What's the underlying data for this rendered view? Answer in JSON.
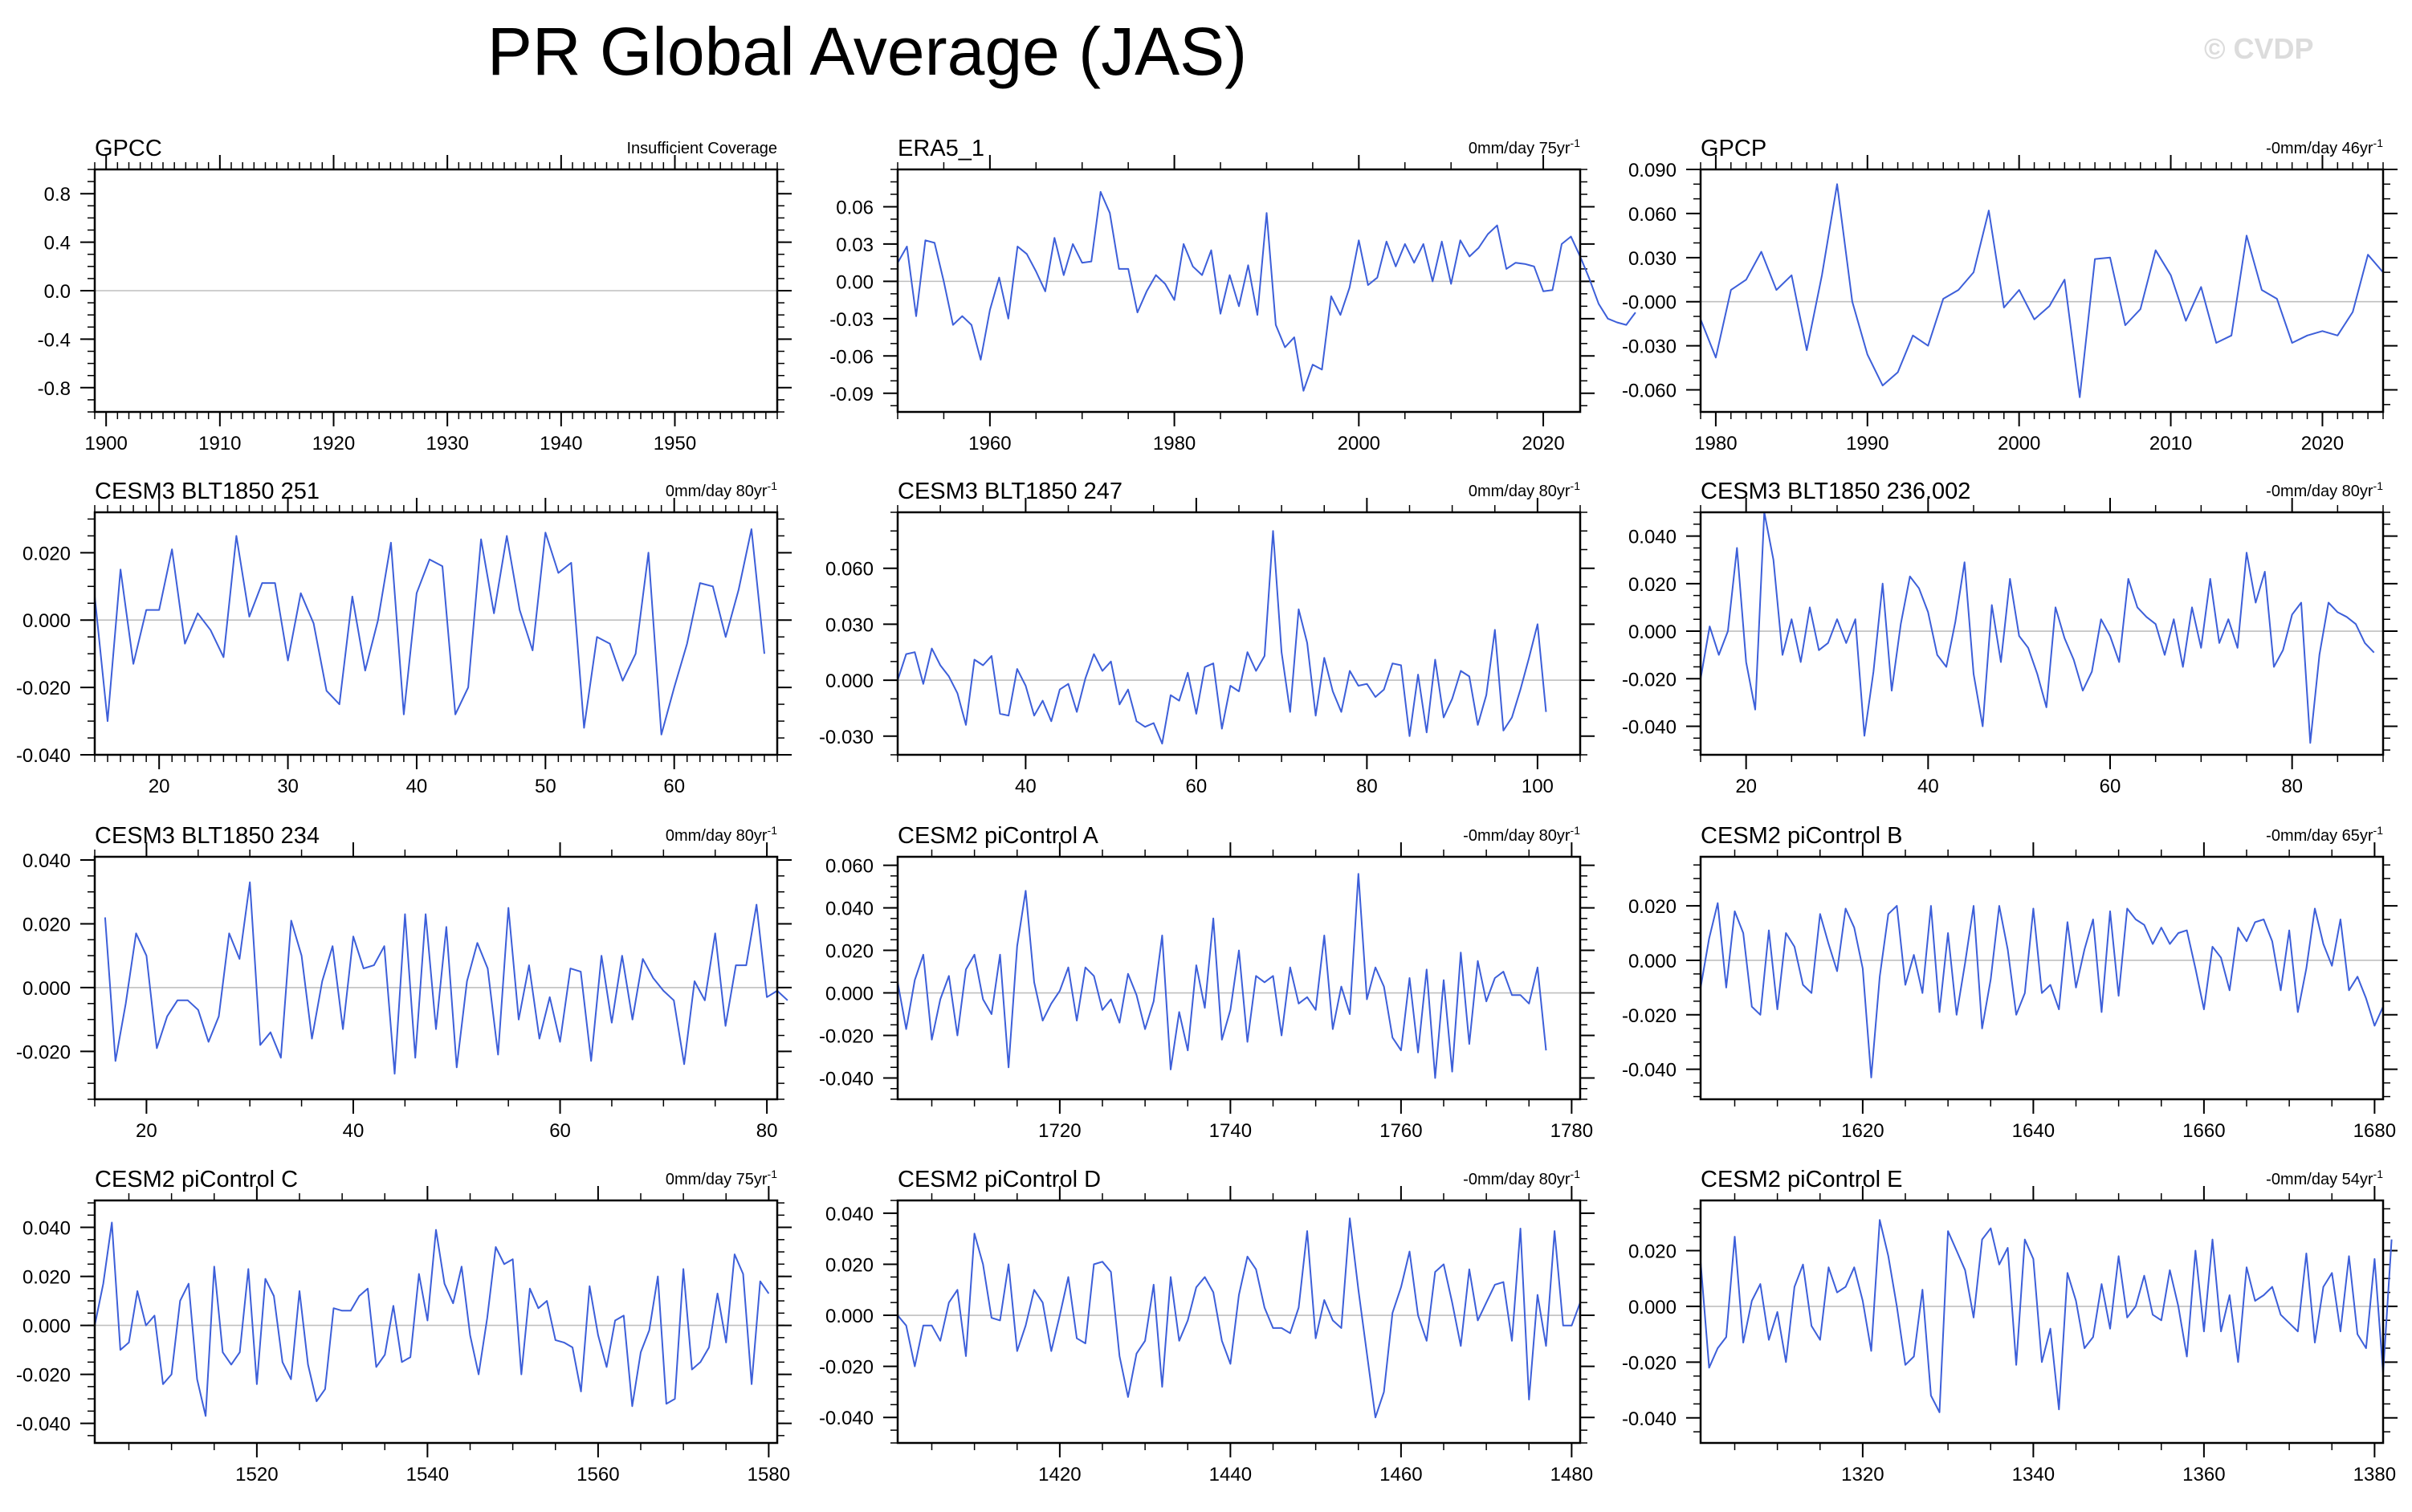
{
  "title": "PR Global Average (JAS)",
  "watermark": "© CVDP",
  "colors": {
    "line": "#3d5fd9",
    "zero": "#bfbfbf",
    "frame": "#000000"
  },
  "chart_data": [
    {
      "type": "line",
      "title": "GPCC",
      "right_label": "Insufficient Coverage",
      "xlim": [
        1899,
        1959
      ],
      "xticks": [
        1900,
        1910,
        1920,
        1930,
        1940,
        1950
      ],
      "xminor": 1,
      "ylim": [
        -1.0,
        1.0
      ],
      "yticks": [
        -0.8,
        -0.4,
        0.0,
        0.4,
        0.8
      ],
      "ytick_labels": [
        "-0.8",
        "-0.4",
        "0.0",
        "0.4",
        "0.8"
      ],
      "yminor": 0.1,
      "x0": 1900,
      "values": []
    },
    {
      "type": "line",
      "title": "ERA5_1",
      "right_label": "0mm/day 75yr",
      "xlim": [
        1950,
        2024
      ],
      "xticks": [
        1960,
        1980,
        2000,
        2020
      ],
      "xminor": 5,
      "ylim": [
        -0.105,
        0.09
      ],
      "yticks": [
        -0.09,
        -0.06,
        -0.03,
        0.0,
        0.03,
        0.06
      ],
      "ytick_labels": [
        "-0.09",
        "-0.06",
        "-0.03",
        "0.00",
        "0.03",
        "0.06"
      ],
      "yminor": 0.01,
      "x0": 1950,
      "values": [
        0.015,
        0.028,
        -0.028,
        0.033,
        0.031,
        0.0,
        -0.035,
        -0.028,
        -0.035,
        -0.063,
        -0.023,
        0.003,
        -0.03,
        0.028,
        0.022,
        0.008,
        -0.008,
        0.035,
        0.005,
        0.03,
        0.015,
        0.016,
        0.072,
        0.055,
        0.01,
        0.01,
        -0.025,
        -0.008,
        0.005,
        -0.002,
        -0.015,
        0.03,
        0.012,
        0.005,
        0.025,
        -0.026,
        0.005,
        -0.02,
        0.013,
        -0.027,
        0.055,
        -0.035,
        -0.053,
        -0.045,
        -0.088,
        -0.067,
        -0.071,
        -0.012,
        -0.027,
        -0.005,
        0.033,
        -0.003,
        0.003,
        0.032,
        0.012,
        0.03,
        0.015,
        0.03,
        0.0,
        0.032,
        -0.002,
        0.033,
        0.02,
        0.027,
        0.038,
        0.045,
        0.01,
        0.015,
        0.014,
        0.012,
        -0.008,
        -0.007,
        0.03,
        0.036,
        0.02,
        0.002,
        -0.018,
        -0.03,
        -0.033,
        -0.035,
        -0.025
      ]
    },
    {
      "type": "line",
      "title": "GPCP",
      "right_label": "-0mm/day 46yr",
      "xlim": [
        1979,
        2024
      ],
      "xticks": [
        1980,
        1990,
        2000,
        2010,
        2020
      ],
      "xminor": 1,
      "ylim": [
        -0.075,
        0.09
      ],
      "yticks": [
        -0.06,
        -0.03,
        0.0,
        0.03,
        0.06,
        0.09
      ],
      "ytick_labels": [
        "-0.060",
        "-0.030",
        "-0.000",
        "0.030",
        "0.060",
        "0.090"
      ],
      "yminor": 0.01,
      "x0": 1979,
      "values": [
        -0.012,
        -0.038,
        0.008,
        0.015,
        0.034,
        0.008,
        0.018,
        -0.033,
        0.018,
        0.08,
        0.0,
        -0.036,
        -0.057,
        -0.048,
        -0.023,
        -0.03,
        0.002,
        0.008,
        0.02,
        0.062,
        -0.004,
        0.008,
        -0.012,
        -0.003,
        0.015,
        -0.065,
        0.029,
        0.03,
        -0.016,
        -0.005,
        0.035,
        0.018,
        -0.013,
        0.01,
        -0.028,
        -0.023,
        0.045,
        0.008,
        0.002,
        -0.028,
        -0.023,
        -0.02,
        -0.023,
        -0.007,
        0.032,
        0.02
      ]
    },
    {
      "type": "line",
      "title": "CESM3 BLT1850 251",
      "right_label": "0mm/day 80yr",
      "xlim": [
        15,
        68
      ],
      "xticks": [
        20,
        30,
        40,
        50,
        60
      ],
      "xminor": 1,
      "ylim": [
        -0.04,
        0.032
      ],
      "yticks": [
        -0.04,
        -0.02,
        0.0,
        0.02
      ],
      "ytick_labels": [
        "-0.040",
        "-0.020",
        "0.000",
        "0.020"
      ],
      "yminor": 0.005,
      "x0": 15,
      "values": [
        0.007,
        -0.03,
        0.015,
        -0.013,
        0.003,
        0.003,
        0.021,
        -0.007,
        0.002,
        -0.003,
        -0.011,
        0.025,
        0.001,
        0.011,
        0.011,
        -0.012,
        0.008,
        -0.001,
        -0.021,
        -0.025,
        0.007,
        -0.015,
        0.0,
        0.023,
        -0.028,
        0.008,
        0.018,
        0.016,
        -0.028,
        -0.02,
        0.024,
        0.002,
        0.025,
        0.003,
        -0.009,
        0.026,
        0.014,
        0.017,
        -0.032,
        -0.005,
        -0.007,
        -0.018,
        -0.01,
        0.02,
        -0.034,
        -0.02,
        -0.007,
        0.011,
        0.01,
        -0.005,
        0.009,
        0.027,
        -0.01
      ]
    },
    {
      "type": "line",
      "title": "CESM3 BLT1850 247",
      "right_label": "0mm/day 80yr",
      "xlim": [
        25,
        105
      ],
      "xticks": [
        40,
        60,
        80,
        100
      ],
      "xminor": 5,
      "ylim": [
        -0.04,
        0.09
      ],
      "yticks": [
        -0.03,
        0.0,
        0.03,
        0.06
      ],
      "ytick_labels": [
        "-0.030",
        "0.000",
        "0.030",
        "0.060"
      ],
      "yminor": 0.01,
      "x0": 25,
      "values": [
        0.0,
        0.014,
        0.015,
        -0.002,
        0.017,
        0.008,
        0.002,
        -0.007,
        -0.024,
        0.011,
        0.008,
        0.013,
        -0.018,
        -0.019,
        0.006,
        -0.003,
        -0.019,
        -0.011,
        -0.022,
        -0.005,
        -0.002,
        -0.017,
        0.001,
        0.014,
        0.005,
        0.01,
        -0.013,
        -0.005,
        -0.022,
        -0.025,
        -0.023,
        -0.034,
        -0.008,
        -0.011,
        0.004,
        -0.018,
        0.007,
        0.009,
        -0.026,
        -0.003,
        -0.006,
        0.015,
        0.005,
        0.013,
        0.08,
        0.015,
        -0.017,
        0.038,
        0.02,
        -0.019,
        0.012,
        -0.006,
        -0.017,
        0.005,
        -0.003,
        -0.002,
        -0.009,
        -0.005,
        0.009,
        0.008,
        -0.03,
        0.003,
        -0.028,
        0.011,
        -0.02,
        -0.01,
        0.005,
        0.002,
        -0.024,
        -0.008,
        0.027,
        -0.027,
        -0.02,
        -0.005,
        0.012,
        0.03,
        -0.017
      ]
    },
    {
      "type": "line",
      "title": "CESM3 BLT1850 236.002",
      "right_label": "-0mm/day 80yr",
      "xlim": [
        15,
        90
      ],
      "xticks": [
        20,
        40,
        60,
        80
      ],
      "xminor": 5,
      "ylim": [
        -0.052,
        0.05
      ],
      "yticks": [
        -0.04,
        -0.02,
        0.0,
        0.02,
        0.04
      ],
      "ytick_labels": [
        "-0.040",
        "-0.020",
        "0.000",
        "0.020",
        "0.040"
      ],
      "yminor": 0.005,
      "x0": 15,
      "values": [
        -0.02,
        0.002,
        -0.01,
        0.0,
        0.035,
        -0.013,
        -0.033,
        0.05,
        0.03,
        -0.01,
        0.005,
        -0.013,
        0.01,
        -0.008,
        -0.005,
        0.005,
        -0.005,
        0.005,
        -0.044,
        -0.017,
        0.02,
        -0.025,
        0.003,
        0.023,
        0.018,
        0.008,
        -0.01,
        -0.015,
        0.004,
        0.029,
        -0.018,
        -0.04,
        0.011,
        -0.013,
        0.022,
        -0.002,
        -0.007,
        -0.018,
        -0.032,
        0.01,
        -0.003,
        -0.012,
        -0.025,
        -0.017,
        0.005,
        -0.002,
        -0.013,
        0.022,
        0.01,
        0.006,
        0.003,
        -0.01,
        0.005,
        -0.015,
        0.01,
        -0.007,
        0.022,
        -0.005,
        0.005,
        -0.007,
        0.033,
        0.012,
        0.025,
        -0.015,
        -0.008,
        0.007,
        0.012,
        -0.047,
        -0.01,
        0.012,
        0.008,
        0.006,
        0.003,
        -0.005,
        -0.009
      ]
    },
    {
      "type": "line",
      "title": "CESM3 BLT1850 234",
      "right_label": "0mm/day 80yr",
      "xlim": [
        15,
        81
      ],
      "xticks": [
        20,
        40,
        60,
        80
      ],
      "xminor": 5,
      "ylim": [
        -0.035,
        0.041
      ],
      "yticks": [
        -0.02,
        0.0,
        0.02,
        0.04
      ],
      "ytick_labels": [
        "-0.020",
        "0.000",
        "0.020",
        "0.040"
      ],
      "yminor": 0.005,
      "x0": 16,
      "values": [
        0.022,
        -0.023,
        -0.005,
        0.017,
        0.01,
        -0.019,
        -0.009,
        -0.004,
        -0.004,
        -0.007,
        -0.017,
        -0.009,
        0.017,
        0.009,
        0.033,
        -0.018,
        -0.014,
        -0.022,
        0.021,
        0.01,
        -0.016,
        0.002,
        0.013,
        -0.013,
        0.016,
        0.006,
        0.007,
        0.013,
        -0.027,
        0.023,
        -0.022,
        0.023,
        -0.013,
        0.019,
        -0.025,
        0.002,
        0.014,
        0.006,
        -0.021,
        0.025,
        -0.01,
        0.007,
        -0.016,
        -0.003,
        -0.017,
        0.006,
        0.005,
        -0.023,
        0.01,
        -0.011,
        0.01,
        -0.01,
        0.009,
        0.003,
        -0.001,
        -0.004,
        -0.024,
        0.002,
        -0.004,
        0.017,
        -0.012,
        0.007,
        0.007,
        0.026,
        -0.003,
        -0.001,
        -0.004
      ]
    },
    {
      "type": "line",
      "title": "CESM2 piControl A",
      "right_label": "-0mm/day 80yr",
      "xlim": [
        1701,
        1781
      ],
      "xticks": [
        1720,
        1740,
        1760,
        1780
      ],
      "xminor": 5,
      "ylim": [
        -0.05,
        0.064
      ],
      "yticks": [
        -0.04,
        -0.02,
        0.0,
        0.02,
        0.04,
        0.06
      ],
      "ytick_labels": [
        "-0.040",
        "-0.020",
        "0.000",
        "0.020",
        "0.040",
        "0.060"
      ],
      "yminor": 0.005,
      "x0": 1701,
      "values": [
        0.005,
        -0.017,
        0.006,
        0.018,
        -0.022,
        -0.003,
        0.008,
        -0.02,
        0.011,
        0.018,
        -0.003,
        -0.01,
        0.018,
        -0.035,
        0.022,
        0.048,
        0.005,
        -0.013,
        -0.005,
        0.001,
        0.012,
        -0.013,
        0.012,
        0.008,
        -0.008,
        -0.003,
        -0.014,
        0.009,
        -0.001,
        -0.017,
        -0.004,
        0.027,
        -0.036,
        -0.009,
        -0.027,
        0.013,
        -0.007,
        0.035,
        -0.022,
        -0.008,
        0.02,
        -0.023,
        0.008,
        0.005,
        0.008,
        -0.02,
        0.012,
        -0.005,
        -0.002,
        -0.008,
        0.027,
        -0.017,
        0.003,
        -0.01,
        0.056,
        -0.003,
        0.012,
        0.003,
        -0.021,
        -0.027,
        0.007,
        -0.028,
        0.011,
        -0.04,
        0.006,
        -0.037,
        0.019,
        -0.024,
        0.015,
        -0.004,
        0.007,
        0.01,
        -0.001,
        -0.001,
        -0.005,
        0.012,
        -0.027
      ]
    },
    {
      "type": "line",
      "title": "CESM2 piControl B",
      "right_label": "-0mm/day 65yr",
      "xlim": [
        1601,
        1681
      ],
      "xticks": [
        1620,
        1640,
        1660,
        1680
      ],
      "xminor": 5,
      "ylim": [
        -0.051,
        0.038
      ],
      "yticks": [
        -0.04,
        -0.02,
        0.0,
        0.02
      ],
      "ytick_labels": [
        "-0.040",
        "-0.020",
        "0.000",
        "0.020"
      ],
      "yminor": 0.005,
      "x0": 1601,
      "values": [
        -0.01,
        0.008,
        0.021,
        -0.01,
        0.018,
        0.01,
        -0.017,
        -0.02,
        0.011,
        -0.018,
        0.01,
        0.005,
        -0.009,
        -0.012,
        0.017,
        0.006,
        -0.004,
        0.019,
        0.012,
        -0.003,
        -0.043,
        -0.006,
        0.017,
        0.02,
        -0.009,
        0.002,
        -0.012,
        0.02,
        -0.019,
        0.01,
        -0.02,
        -0.001,
        0.02,
        -0.025,
        -0.007,
        0.02,
        0.004,
        -0.02,
        -0.012,
        0.019,
        -0.012,
        -0.009,
        -0.018,
        0.014,
        -0.01,
        0.004,
        0.015,
        -0.019,
        0.018,
        -0.013,
        0.019,
        0.015,
        0.013,
        0.006,
        0.012,
        0.006,
        0.01,
        0.011,
        -0.003,
        -0.018,
        0.005,
        0.001,
        -0.011,
        0.012,
        0.007,
        0.014,
        0.015,
        0.007,
        -0.011,
        0.011,
        -0.019,
        -0.003,
        0.019,
        0.006,
        -0.002,
        0.015,
        -0.011,
        -0.006,
        -0.014,
        -0.024,
        -0.017
      ]
    },
    {
      "type": "line",
      "title": "CESM2 piControl C",
      "right_label": "0mm/day 75yr",
      "xlim": [
        1501,
        1581
      ],
      "xticks": [
        1520,
        1540,
        1560,
        1580
      ],
      "xminor": 5,
      "ylim": [
        -0.048,
        0.051
      ],
      "yticks": [
        -0.04,
        -0.02,
        0.0,
        0.02,
        0.04
      ],
      "ytick_labels": [
        "-0.040",
        "-0.020",
        "0.000",
        "0.020",
        "0.040"
      ],
      "yminor": 0.005,
      "x0": 1501,
      "values": [
        0.0,
        0.017,
        0.042,
        -0.01,
        -0.007,
        0.014,
        0.0,
        0.004,
        -0.024,
        -0.02,
        0.01,
        0.017,
        -0.022,
        -0.037,
        0.024,
        -0.011,
        -0.016,
        -0.011,
        0.023,
        -0.024,
        0.019,
        0.012,
        -0.015,
        -0.022,
        0.014,
        -0.016,
        -0.031,
        -0.026,
        0.007,
        0.006,
        0.006,
        0.012,
        0.015,
        -0.017,
        -0.012,
        0.008,
        -0.015,
        -0.013,
        0.021,
        0.002,
        0.039,
        0.017,
        0.009,
        0.024,
        -0.004,
        -0.02,
        0.003,
        0.032,
        0.025,
        0.027,
        -0.02,
        0.015,
        0.007,
        0.01,
        -0.006,
        -0.007,
        -0.009,
        -0.027,
        0.016,
        -0.004,
        -0.017,
        0.002,
        0.004,
        -0.033,
        -0.011,
        -0.002,
        0.02,
        -0.032,
        -0.03,
        0.023,
        -0.018,
        -0.015,
        -0.009,
        0.013,
        -0.007,
        0.029,
        0.021,
        -0.024,
        0.018,
        0.013
      ]
    },
    {
      "type": "line",
      "title": "CESM2 piControl D",
      "right_label": "-0mm/day 80yr",
      "xlim": [
        1401,
        1481
      ],
      "xticks": [
        1420,
        1440,
        1460,
        1480
      ],
      "xminor": 5,
      "ylim": [
        -0.05,
        0.045
      ],
      "yticks": [
        -0.04,
        -0.02,
        0.0,
        0.02,
        0.04
      ],
      "ytick_labels": [
        "-0.040",
        "-0.020",
        "0.000",
        "0.020",
        "0.040"
      ],
      "yminor": 0.005,
      "x0": 1401,
      "values": [
        0.0,
        -0.004,
        -0.02,
        -0.004,
        -0.004,
        -0.01,
        0.005,
        0.01,
        -0.016,
        0.032,
        0.02,
        -0.001,
        -0.002,
        0.02,
        -0.014,
        -0.004,
        0.01,
        0.005,
        -0.014,
        0.0,
        0.015,
        -0.009,
        -0.011,
        0.02,
        0.021,
        0.017,
        -0.016,
        -0.032,
        -0.015,
        -0.01,
        0.012,
        -0.028,
        0.015,
        -0.01,
        -0.002,
        0.011,
        0.015,
        0.009,
        -0.01,
        -0.019,
        0.008,
        0.023,
        0.018,
        0.003,
        -0.005,
        -0.005,
        -0.007,
        0.003,
        0.033,
        -0.009,
        0.006,
        -0.002,
        -0.005,
        0.038,
        0.01,
        -0.015,
        -0.04,
        -0.03,
        0.001,
        0.011,
        0.025,
        0.0,
        -0.01,
        0.017,
        0.02,
        0.005,
        -0.012,
        0.018,
        -0.002,
        0.005,
        0.012,
        0.013,
        -0.01,
        0.034,
        -0.033,
        0.008,
        -0.012,
        0.033,
        -0.004,
        -0.004,
        0.005
      ]
    },
    {
      "type": "line",
      "title": "CESM2 piControl E",
      "right_label": "-0mm/day 54yr",
      "xlim": [
        1301,
        1381
      ],
      "xticks": [
        1320,
        1340,
        1360,
        1380
      ],
      "xminor": 5,
      "ylim": [
        -0.049,
        0.038
      ],
      "yticks": [
        -0.04,
        -0.02,
        0.0,
        0.02
      ],
      "ytick_labels": [
        "-0.040",
        "-0.020",
        "0.000",
        "0.020"
      ],
      "yminor": 0.005,
      "x0": 1301,
      "values": [
        0.016,
        -0.022,
        -0.015,
        -0.011,
        0.025,
        -0.013,
        0.002,
        0.008,
        -0.012,
        -0.002,
        -0.02,
        0.007,
        0.015,
        -0.007,
        -0.012,
        0.014,
        0.005,
        0.007,
        0.014,
        0.002,
        -0.016,
        0.031,
        0.018,
        0.0,
        -0.021,
        -0.018,
        0.006,
        -0.032,
        -0.038,
        0.027,
        0.02,
        0.013,
        -0.004,
        0.024,
        0.028,
        0.015,
        0.021,
        -0.021,
        0.024,
        0.017,
        -0.02,
        -0.008,
        -0.037,
        0.012,
        0.002,
        -0.015,
        -0.011,
        0.008,
        -0.008,
        0.018,
        -0.004,
        0.0,
        0.011,
        -0.003,
        -0.005,
        0.013,
        0.0,
        -0.018,
        0.02,
        -0.009,
        0.024,
        -0.009,
        0.004,
        -0.02,
        0.014,
        0.002,
        0.004,
        0.007,
        -0.003,
        -0.006,
        -0.009,
        0.019,
        -0.013,
        0.007,
        0.012,
        -0.009,
        0.018,
        -0.01,
        -0.015,
        0.017,
        -0.024,
        0.024
      ]
    }
  ]
}
